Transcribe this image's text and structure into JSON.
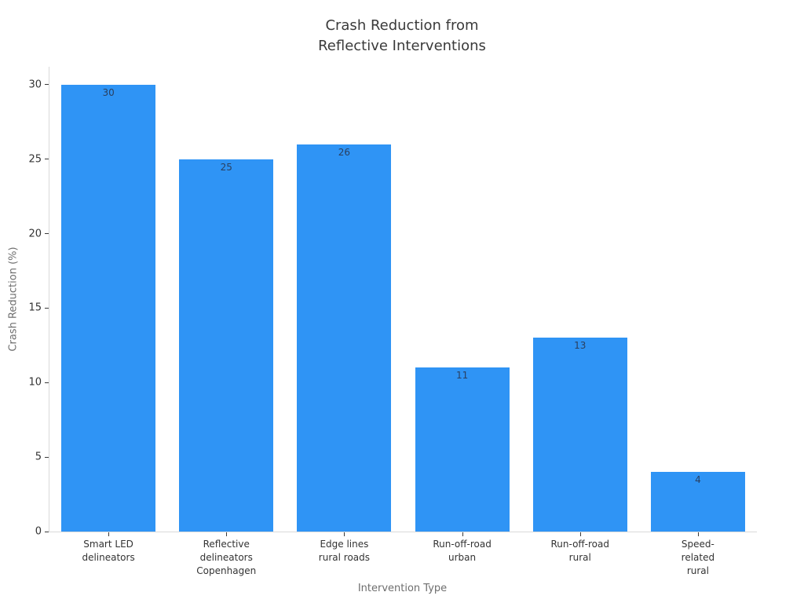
{
  "title": {
    "line1": "Crash Reduction from",
    "line2": "Reflective Interventions"
  },
  "chart_data": {
    "type": "bar",
    "title": "Crash Reduction from Reflective Interventions",
    "categories": [
      [
        "Smart LED",
        "delineators"
      ],
      [
        "Reflective",
        "delineators",
        "Copenhagen"
      ],
      [
        "Edge lines",
        "rural roads"
      ],
      [
        "Run-off-road",
        "urban"
      ],
      [
        "Run-off-road",
        "rural"
      ],
      [
        "Speed-related",
        "rural"
      ]
    ],
    "values": [
      30,
      25,
      26,
      11,
      13,
      4
    ],
    "bar_labels": [
      "30",
      "25",
      "26",
      "11",
      "13",
      "4"
    ],
    "xlabel": "Intervention Type",
    "ylabel": "Crash Reduction (%)",
    "ylim": [
      0,
      31.2
    ],
    "yticks": [
      0,
      5,
      10,
      15,
      20,
      25,
      30
    ],
    "grid": false,
    "legend": "none",
    "colors": {
      "bar_fill": "#2F94F5",
      "bar_value_label": "#2a3f5f",
      "axis_line": "#d9d9d9",
      "tick_mark": "#3a3a3a",
      "tick_label": "#333333",
      "axis_title": "#6e6e6e",
      "title_text": "#3a3a3a",
      "background": "#ffffff"
    }
  }
}
